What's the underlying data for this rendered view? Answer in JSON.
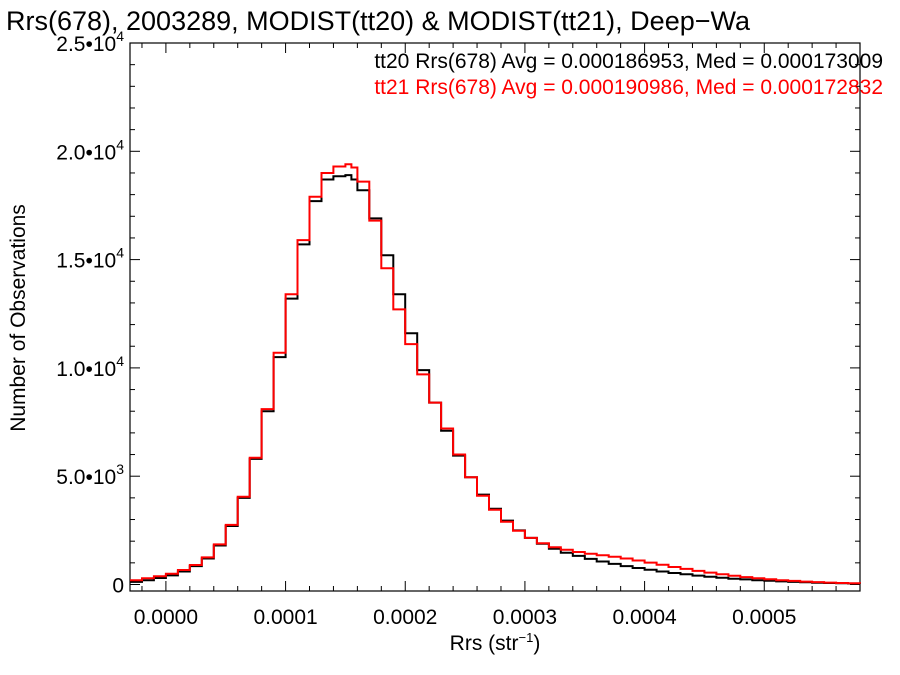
{
  "chart_data": {
    "type": "line",
    "title": "Rrs(678), 2003289, MODIST(tt20) & MODIST(tt21), Deep−Wa",
    "xlabel": "Rrs (str",
    "xlabel_sup": "−1",
    "xlabel_end": ")",
    "ylabel": "Number of Observations",
    "xlim": [
      -3e-05,
      0.00058
    ],
    "ylim": [
      -300,
      25000
    ],
    "x_ticks": [
      {
        "value": 0.0,
        "label": "0.0000"
      },
      {
        "value": 0.0001,
        "label": "0.0001"
      },
      {
        "value": 0.0002,
        "label": "0.0002"
      },
      {
        "value": 0.0003,
        "label": "0.0003"
      },
      {
        "value": 0.0004,
        "label": "0.0004"
      },
      {
        "value": 0.0005,
        "label": "0.0005"
      }
    ],
    "y_ticks": [
      {
        "value": 0,
        "mant": "0",
        "exp": ""
      },
      {
        "value": 5000,
        "mant": "5.0•10",
        "exp": "3"
      },
      {
        "value": 10000,
        "mant": "1.0•10",
        "exp": "4"
      },
      {
        "value": 15000,
        "mant": "1.5•10",
        "exp": "4"
      },
      {
        "value": 20000,
        "mant": "2.0•10",
        "exp": "4"
      },
      {
        "value": 25000,
        "mant": "2.5•10",
        "exp": "4"
      }
    ],
    "legend": [
      {
        "text": "tt20 Rrs(678) Avg = 0.000186953, Med = 0.000173009",
        "color": "#000000"
      },
      {
        "text": "tt21 Rrs(678) Avg = 0.000190986, Med = 0.000172832",
        "color": "#ff0000"
      }
    ],
    "legend_placement": "top-right",
    "grid": false,
    "series": [
      {
        "color": "#000000",
        "x": [
          -3e-05,
          -2e-05,
          -1e-05,
          0.0,
          1e-05,
          2e-05,
          3e-05,
          4e-05,
          5e-05,
          6e-05,
          7e-05,
          8e-05,
          9e-05,
          0.0001,
          0.00011,
          0.00012,
          0.00013,
          0.00014,
          0.00015,
          0.000155,
          0.00016,
          0.00017,
          0.00018,
          0.00019,
          0.0002,
          0.00021,
          0.00022,
          0.00023,
          0.00024,
          0.00025,
          0.00026,
          0.00027,
          0.00028,
          0.00029,
          0.0003,
          0.00031,
          0.00032,
          0.00033,
          0.00034,
          0.00035,
          0.00036,
          0.00037,
          0.00038,
          0.00039,
          0.0004,
          0.00041,
          0.00042,
          0.00043,
          0.00044,
          0.00045,
          0.00046,
          0.00047,
          0.00048,
          0.00049,
          0.0005,
          0.00051,
          0.00052,
          0.00053,
          0.00054,
          0.00055,
          0.00056,
          0.00057,
          0.00058
        ],
        "y": [
          120,
          200,
          300,
          420,
          600,
          850,
          1200,
          1800,
          2700,
          4000,
          5800,
          8000,
          10500,
          13200,
          15700,
          17700,
          18700,
          18850,
          18900,
          18700,
          18200,
          16900,
          15200,
          13400,
          11600,
          9900,
          8400,
          7100,
          5950,
          4950,
          4150,
          3500,
          2950,
          2500,
          2150,
          1880,
          1650,
          1470,
          1320,
          1180,
          1060,
          950,
          850,
          760,
          680,
          600,
          530,
          470,
          410,
          360,
          310,
          270,
          235,
          200,
          170,
          145,
          120,
          100,
          85,
          70,
          55,
          45,
          35
        ]
      },
      {
        "color": "#ff0000",
        "x": [
          -3e-05,
          -2e-05,
          -1e-05,
          0.0,
          1e-05,
          2e-05,
          3e-05,
          4e-05,
          5e-05,
          6e-05,
          7e-05,
          8e-05,
          9e-05,
          0.0001,
          0.00011,
          0.00012,
          0.00013,
          0.00014,
          0.00015,
          0.000155,
          0.00016,
          0.00017,
          0.00018,
          0.00019,
          0.0002,
          0.00021,
          0.00022,
          0.00023,
          0.00024,
          0.00025,
          0.00026,
          0.00027,
          0.00028,
          0.00029,
          0.0003,
          0.00031,
          0.00032,
          0.00033,
          0.00034,
          0.00035,
          0.00036,
          0.00037,
          0.00038,
          0.00039,
          0.0004,
          0.00041,
          0.00042,
          0.00043,
          0.00044,
          0.00045,
          0.00046,
          0.00047,
          0.00048,
          0.00049,
          0.0005,
          0.00051,
          0.00052,
          0.00053,
          0.00054,
          0.00055,
          0.00056,
          0.00057,
          0.00058
        ],
        "y": [
          200,
          290,
          380,
          500,
          670,
          900,
          1250,
          1850,
          2750,
          4050,
          5850,
          8100,
          10700,
          13400,
          15900,
          17900,
          19000,
          19300,
          19400,
          19250,
          18600,
          16800,
          14600,
          12700,
          11100,
          9700,
          8400,
          7200,
          6000,
          4950,
          4100,
          3450,
          2900,
          2480,
          2150,
          1900,
          1720,
          1600,
          1500,
          1420,
          1350,
          1280,
          1200,
          1110,
          1010,
          910,
          810,
          720,
          630,
          550,
          470,
          400,
          340,
          290,
          240,
          200,
          165,
          135,
          110,
          90,
          70,
          55,
          45
        ]
      }
    ]
  }
}
